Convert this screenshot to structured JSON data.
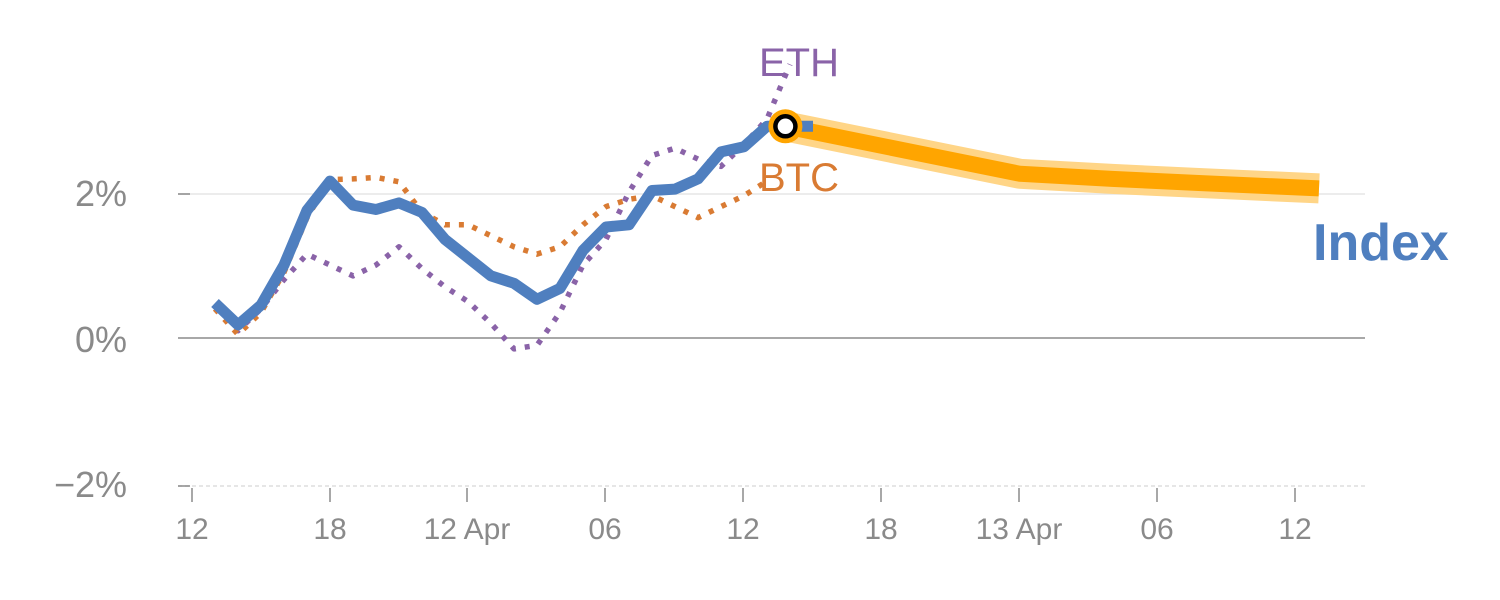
{
  "chart_data": {
    "type": "line",
    "title": "",
    "xlabel": "",
    "ylabel": "",
    "x_tick_labels": [
      "12",
      "18",
      "12 Apr",
      "06",
      "12",
      "18",
      "13 Apr",
      "06",
      "12"
    ],
    "y_tick_labels": [
      "2%",
      "0%",
      "−2%"
    ],
    "y_ticks": [
      2,
      0,
      -2
    ],
    "ylim": [
      -2.1,
      3.7
    ],
    "xlim": [
      0,
      50
    ],
    "grid": "horizontal",
    "colors": {
      "index": "#4f7fbf",
      "btc": "#d97b33",
      "eth": "#8a63a8",
      "forecast": "#ffa500",
      "forecast_band": "#ffd587",
      "zero_line": "#8c8c8c",
      "grid": "#e6e6e6"
    },
    "series": [
      {
        "key": "index",
        "name": "Index",
        "style": "solid",
        "x": [
          1,
          2,
          3,
          4,
          5,
          6,
          7,
          8,
          9,
          10,
          11,
          12,
          13,
          14,
          15,
          16,
          17,
          18,
          19,
          20,
          21,
          22,
          23,
          24,
          25,
          26,
          27
        ],
        "values": [
          0.48,
          0.18,
          0.45,
          1.0,
          1.75,
          2.15,
          1.82,
          1.76,
          1.85,
          1.72,
          1.35,
          1.1,
          0.85,
          0.75,
          0.53,
          0.68,
          1.2,
          1.52,
          1.55,
          2.02,
          2.04,
          2.18,
          2.55,
          2.62,
          2.9,
          2.9,
          2.9
        ]
      },
      {
        "key": "btc",
        "name": "BTC",
        "style": "dotted",
        "x": [
          1,
          2,
          3,
          4,
          5,
          6,
          7,
          8,
          9,
          10,
          11,
          12,
          13,
          14,
          15,
          16,
          17,
          18,
          19,
          20,
          21,
          22,
          23,
          24,
          25
        ],
        "values": [
          0.4,
          0.05,
          0.35,
          0.9,
          1.65,
          2.17,
          2.18,
          2.2,
          2.14,
          1.72,
          1.55,
          1.55,
          1.4,
          1.25,
          1.15,
          1.25,
          1.55,
          1.8,
          1.9,
          1.95,
          1.8,
          1.65,
          1.8,
          1.95,
          2.15
        ]
      },
      {
        "key": "eth",
        "name": "ETH",
        "style": "dotted",
        "x": [
          1,
          2,
          3,
          4,
          5,
          6,
          7,
          8,
          9,
          10,
          11,
          12,
          13,
          14,
          15,
          16,
          17,
          18,
          19,
          20,
          21,
          22,
          23,
          24,
          25,
          26
        ],
        "values": [
          0.4,
          0.1,
          0.4,
          0.8,
          1.15,
          1.0,
          0.85,
          1.0,
          1.25,
          0.95,
          0.7,
          0.5,
          0.2,
          -0.15,
          -0.1,
          0.35,
          1.0,
          1.35,
          2.0,
          2.5,
          2.6,
          2.45,
          2.35,
          2.65,
          3.0,
          3.75
        ]
      },
      {
        "key": "forecast",
        "name": "",
        "style": "band",
        "x": [
          25.8,
          36,
          40,
          44,
          49
        ],
        "values": [
          2.9,
          2.25,
          2.18,
          2.12,
          2.05
        ]
      }
    ],
    "marker": {
      "x": 25.8,
      "value": 2.9
    },
    "labels": {
      "eth": "ETH",
      "btc": "BTC",
      "index": "Index"
    }
  }
}
